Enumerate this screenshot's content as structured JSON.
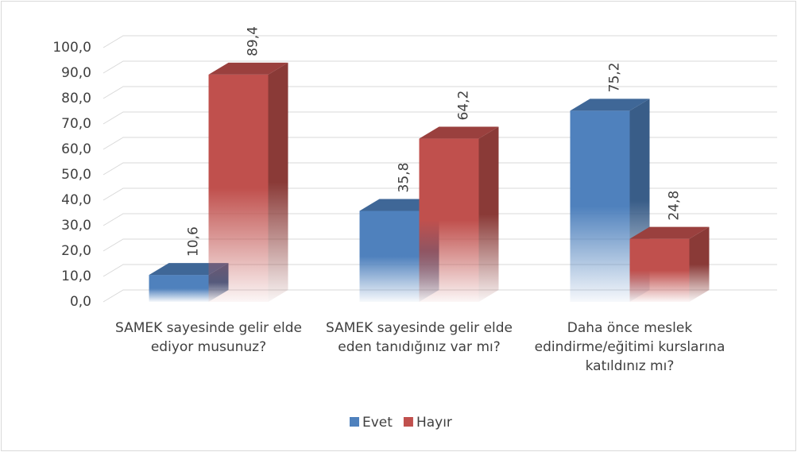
{
  "chart_data": {
    "type": "bar3d",
    "categories": [
      "SAMEK sayesinde gelir elde ediyor musunuz?",
      "SAMEK sayesinde gelir elde eden tanıdığınız var mı?",
      "Daha önce meslek edindirme/eğitimi kurslarına katıldınız mı?"
    ],
    "series": [
      {
        "name": "Evet",
        "color": "#4f81bd",
        "values": [
          10.6,
          35.8,
          75.2
        ],
        "value_labels": [
          "10,6",
          "35,8",
          "75,2"
        ]
      },
      {
        "name": "Hayır",
        "color": "#c0504d",
        "values": [
          89.4,
          64.2,
          24.8
        ],
        "value_labels": [
          "89,4",
          "64,2",
          "24,8"
        ]
      }
    ],
    "ylim": [
      0,
      100
    ],
    "yticks": [
      {
        "value": 0,
        "label": "0,0"
      },
      {
        "value": 10,
        "label": "10,0"
      },
      {
        "value": 20,
        "label": "20,0"
      },
      {
        "value": 30,
        "label": "30,0"
      },
      {
        "value": 40,
        "label": "40,0"
      },
      {
        "value": 50,
        "label": "50,0"
      },
      {
        "value": 60,
        "label": "60,0"
      },
      {
        "value": 70,
        "label": "70,0"
      },
      {
        "value": 80,
        "label": "80,0"
      },
      {
        "value": 90,
        "label": "90,0"
      },
      {
        "value": 100,
        "label": "100,0"
      }
    ],
    "grid": true,
    "legend": "bottom"
  }
}
